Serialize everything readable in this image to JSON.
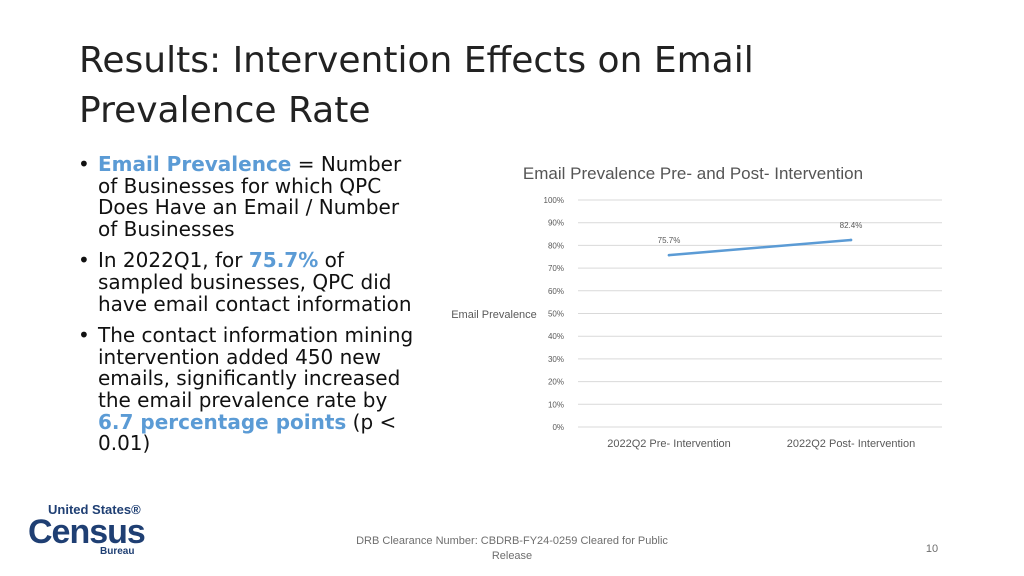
{
  "slide": {
    "title": "Results: Intervention Effects on Email Prevalence Rate",
    "bullets": [
      {
        "parts": [
          {
            "text": "Email Prevalence",
            "highlight": true
          },
          {
            "text": " = Number of Businesses for which QPC Does Have an Email / Number of Businesses",
            "highlight": false
          }
        ]
      },
      {
        "parts": [
          {
            "text": "In 2022Q1, for ",
            "highlight": false
          },
          {
            "text": "75.7%",
            "highlight": true
          },
          {
            "text": " of sampled businesses, QPC did have email contact information",
            "highlight": false
          }
        ]
      },
      {
        "parts": [
          {
            "text": "The contact information mining intervention added 450 new emails, significantly increased the email prevalence rate by ",
            "highlight": false
          },
          {
            "text": "6.7 percentage points",
            "highlight": true
          },
          {
            "text": " (p < 0.01)",
            "highlight": false
          }
        ]
      }
    ],
    "accent_color": "#5b9bd5",
    "footer": "DRB Clearance Number: CBDRB-FY24-0259 Cleared for Public Release",
    "page_number": "10",
    "logo": {
      "line1": "United States®",
      "line2": "Census",
      "line3": "Bureau"
    }
  },
  "chart_data": {
    "type": "line",
    "title": "Email Prevalence Pre- and Post- Intervention",
    "ylabel": "Email Prevalence",
    "xlabel": "",
    "categories": [
      "2022Q2 Pre- Intervention",
      "2022Q2 Post- Intervention"
    ],
    "series": [
      {
        "values": [
          75.7,
          82.4
        ],
        "labels": [
          "75.7%",
          "82.4%"
        ],
        "color": "#5b9bd5"
      }
    ],
    "ylim": [
      0,
      100
    ],
    "yticks": [
      0,
      10,
      20,
      30,
      40,
      50,
      60,
      70,
      80,
      90,
      100
    ],
    "ytick_labels": [
      "0%",
      "10%",
      "20%",
      "30%",
      "40%",
      "50%",
      "60%",
      "70%",
      "80%",
      "90%",
      "100%"
    ],
    "grid": true,
    "legend": "none",
    "grid_color": "#d9d9d9",
    "text_color": "#595959"
  }
}
